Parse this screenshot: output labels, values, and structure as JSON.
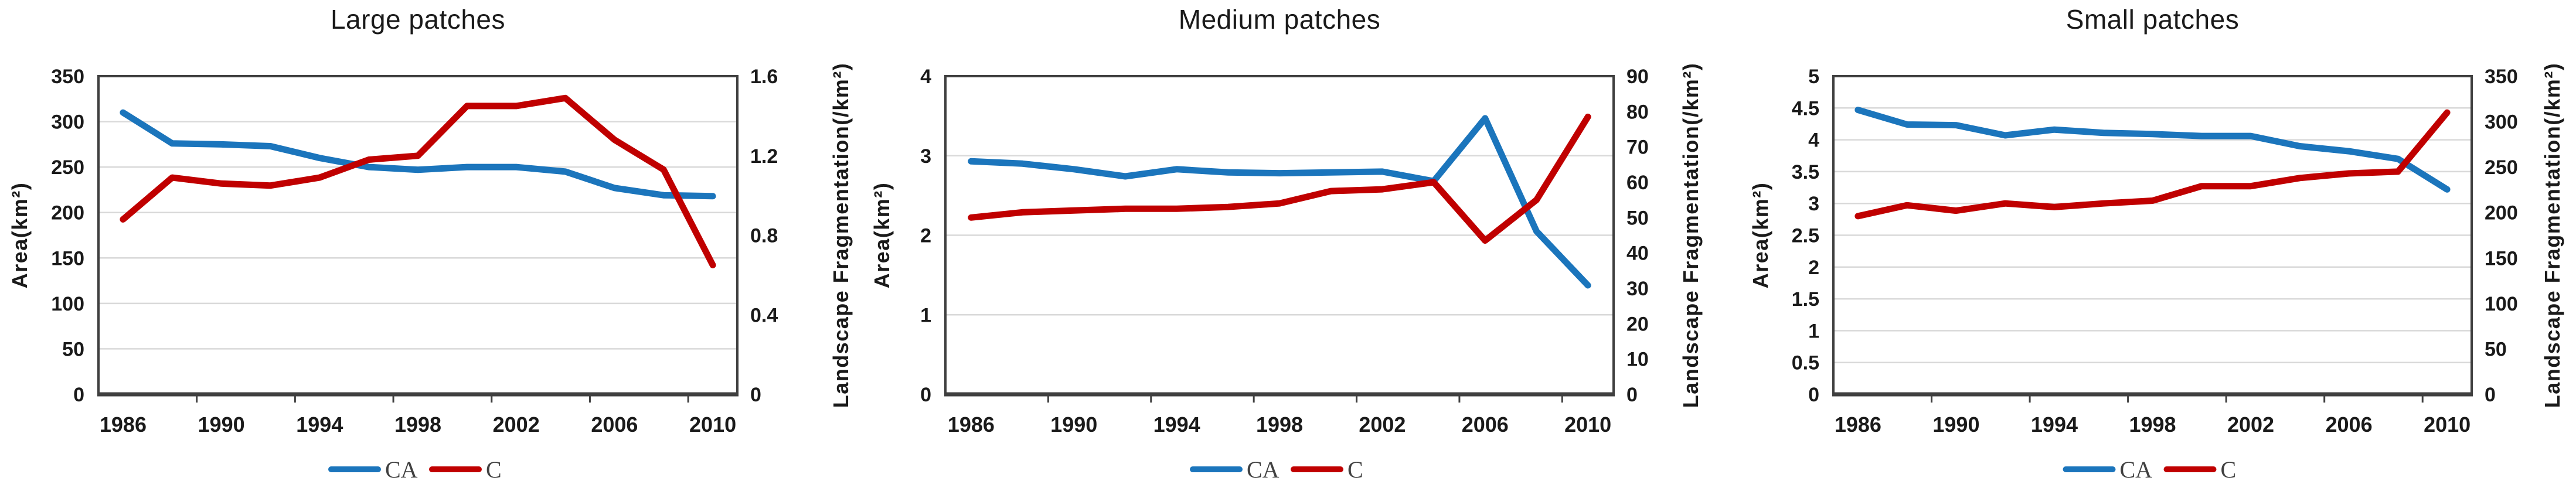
{
  "colors": {
    "ca": "#1B75BC",
    "c": "#C00000",
    "grid": "#D9D9D9",
    "axis": "#3F3F3F",
    "tick_text": "#1A1A1A",
    "legend_text": "#404040",
    "background": "#FFFFFF"
  },
  "legend": {
    "ca_label": "CA",
    "c_label": "C",
    "position": "bottom-center"
  },
  "chart_data": [
    {
      "type": "line",
      "title": "Large patches",
      "x": [
        1986,
        1988,
        1990,
        1992,
        1994,
        1996,
        1998,
        2000,
        2002,
        2004,
        2006,
        2008,
        2010
      ],
      "x_tick_labels": [
        "1986",
        "1990",
        "1994",
        "1998",
        "2002",
        "2006",
        "2010"
      ],
      "left_axis": {
        "title": "Area(km²)",
        "min": 0,
        "max": 350,
        "tick_step": 50,
        "tick_labels": [
          "0",
          "50",
          "100",
          "150",
          "200",
          "250",
          "300",
          "350"
        ]
      },
      "right_axis": {
        "title": "Landscape Fragmentation(/km²)",
        "min": 0,
        "max": 1.6,
        "tick_step": 0.4,
        "tick_labels": [
          "0",
          "0.4",
          "0.8",
          "1.2",
          "1.6"
        ]
      },
      "grid": "horizontal-on",
      "series": [
        {
          "name": "CA",
          "axis": "left",
          "color": "#1B75BC",
          "values": [
            310,
            276,
            275,
            273,
            260,
            250,
            247,
            250,
            250,
            245,
            227,
            219,
            218
          ]
        },
        {
          "name": "C",
          "axis": "right",
          "color": "#C00000",
          "values": [
            0.88,
            1.09,
            1.06,
            1.05,
            1.09,
            1.18,
            1.2,
            1.45,
            1.45,
            1.49,
            1.28,
            1.13,
            0.65
          ]
        }
      ]
    },
    {
      "type": "line",
      "title": "Medium patches",
      "x": [
        1986,
        1988,
        1990,
        1992,
        1994,
        1996,
        1998,
        2000,
        2002,
        2004,
        2006,
        2008,
        2010
      ],
      "x_tick_labels": [
        "1986",
        "1990",
        "1994",
        "1998",
        "2002",
        "2006",
        "2010"
      ],
      "left_axis": {
        "title": "Area(km²)",
        "min": 0,
        "max": 4,
        "tick_step": 1,
        "tick_labels": [
          "0",
          "1",
          "2",
          "3",
          "4"
        ]
      },
      "right_axis": {
        "title": "Landscape Fragmentation(/km²)",
        "min": 0,
        "max": 90,
        "tick_step": 10,
        "tick_labels": [
          "0",
          "10",
          "20",
          "30",
          "40",
          "50",
          "60",
          "70",
          "80",
          "90"
        ]
      },
      "grid": "horizontal-on",
      "series": [
        {
          "name": "CA",
          "axis": "left",
          "color": "#1B75BC",
          "values": [
            2.93,
            2.9,
            2.83,
            2.74,
            2.83,
            2.79,
            2.78,
            2.79,
            2.8,
            2.68,
            3.47,
            2.05,
            1.37
          ]
        },
        {
          "name": "C",
          "axis": "right",
          "color": "#C00000",
          "values": [
            50,
            51.5,
            52,
            52.5,
            52.5,
            53,
            54,
            57.5,
            58,
            60,
            43.5,
            55,
            78.5
          ]
        }
      ]
    },
    {
      "type": "line",
      "title": "Small patches",
      "x": [
        1986,
        1988,
        1990,
        1992,
        1994,
        1996,
        1998,
        2000,
        2002,
        2004,
        2006,
        2008,
        2010
      ],
      "x_tick_labels": [
        "1986",
        "1990",
        "1994",
        "1998",
        "2002",
        "2006",
        "2010"
      ],
      "left_axis": {
        "title": "Area(km²)",
        "min": 0,
        "max": 5,
        "tick_step": 0.5,
        "tick_labels": [
          "0",
          "0.5",
          "1",
          "1.5",
          "2",
          "2.5",
          "3",
          "3.5",
          "4",
          "4.5",
          "5"
        ]
      },
      "right_axis": {
        "title": "Landscape Fragmentation(/km²)",
        "min": 0,
        "max": 350,
        "tick_step": 50,
        "tick_labels": [
          "0",
          "50",
          "100",
          "150",
          "200",
          "250",
          "300",
          "350"
        ]
      },
      "grid": "horizontal-on",
      "series": [
        {
          "name": "CA",
          "axis": "left",
          "color": "#1B75BC",
          "values": [
            4.47,
            4.24,
            4.23,
            4.07,
            4.16,
            4.11,
            4.09,
            4.06,
            4.06,
            3.9,
            3.82,
            3.7,
            3.22
          ]
        },
        {
          "name": "C",
          "axis": "right",
          "color": "#C00000",
          "values": [
            196,
            208,
            202,
            210,
            206,
            210,
            213,
            229,
            229,
            238,
            243,
            245,
            310
          ]
        }
      ]
    }
  ]
}
